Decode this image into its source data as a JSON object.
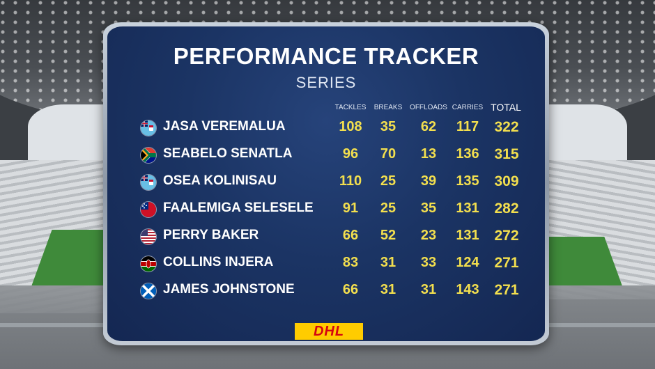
{
  "title": "PERFORMANCE TRACKER",
  "subtitle": "SERIES",
  "columns": {
    "tackles": "TACKLES",
    "breaks": "BREAKS",
    "offloads": "OFFLOADS",
    "carries": "CARRIES",
    "total": "TOTAL"
  },
  "players": [
    {
      "name": "JASA VEREMALUA",
      "flag": "fiji-flag-icon",
      "tackles": "108",
      "breaks": "35",
      "offloads": "62",
      "carries": "117",
      "total": "322"
    },
    {
      "name": "SEABELO SENATLA",
      "flag": "south-africa-flag-icon",
      "tackles": "96",
      "breaks": "70",
      "offloads": "13",
      "carries": "136",
      "total": "315"
    },
    {
      "name": "OSEA KOLINISAU",
      "flag": "fiji-flag-icon",
      "tackles": "110",
      "breaks": "25",
      "offloads": "39",
      "carries": "135",
      "total": "309"
    },
    {
      "name": "FAALEMIGA SELESELE",
      "flag": "samoa-flag-icon",
      "tackles": "91",
      "breaks": "25",
      "offloads": "35",
      "carries": "131",
      "total": "282"
    },
    {
      "name": "PERRY BAKER",
      "flag": "usa-flag-icon",
      "tackles": "66",
      "breaks": "52",
      "offloads": "23",
      "carries": "131",
      "total": "272"
    },
    {
      "name": "COLLINS INJERA",
      "flag": "kenya-flag-icon",
      "tackles": "83",
      "breaks": "31",
      "offloads": "33",
      "carries": "124",
      "total": "271"
    },
    {
      "name": "JAMES JOHNSTONE",
      "flag": "scotland-flag-icon",
      "tackles": "66",
      "breaks": "31",
      "offloads": "31",
      "carries": "143",
      "total": "271"
    }
  ],
  "sponsor": "DHL",
  "colors": {
    "board": "#1b3464",
    "stat": "#f3df4e",
    "sponsor_bg": "#ffcc00",
    "sponsor_text": "#d40511"
  }
}
